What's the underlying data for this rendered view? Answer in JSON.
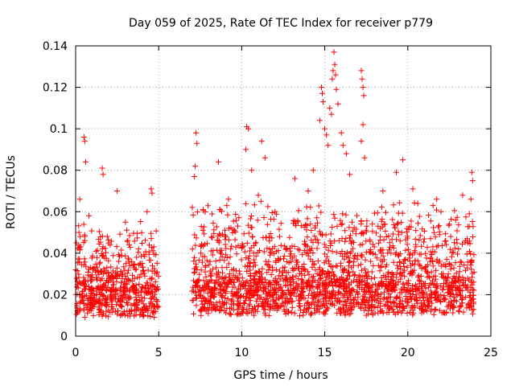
{
  "chart_data": {
    "type": "scatter",
    "title": "Day 059 of 2025, Rate Of TEC Index for receiver p779",
    "xlabel": "GPS time / hours",
    "ylabel": "ROTI / TECUs",
    "xlim": [
      0,
      25
    ],
    "ylim": [
      0,
      0.14
    ],
    "x_ticks": [
      0,
      5,
      10,
      15,
      20,
      25
    ],
    "y_ticks": [
      0,
      0.02,
      0.04,
      0.06,
      0.08,
      0.1,
      0.12,
      0.14
    ],
    "x_tick_labels": [
      "0",
      "5",
      "10",
      "15",
      "20",
      "25"
    ],
    "y_tick_labels": [
      "0",
      "0.02",
      "0.04",
      "0.06",
      "0.08",
      "0.1",
      "0.12",
      "0.14"
    ],
    "grid": true,
    "marker": "plus",
    "color": "#ff0000",
    "series": [
      {
        "segments": [
          {
            "x_start": 0.0,
            "x_end": 5.0,
            "typical": 0.015,
            "spread": 0.018
          },
          {
            "x_start": 7.0,
            "x_end": 24.0,
            "typical": 0.017,
            "spread": 0.022
          }
        ],
        "points": [
          [
            0.5,
            0.096
          ],
          [
            0.55,
            0.094
          ],
          [
            0.6,
            0.084
          ],
          [
            0.25,
            0.066
          ],
          [
            0.8,
            0.058
          ],
          [
            1.6,
            0.081
          ],
          [
            1.65,
            0.078
          ],
          [
            2.5,
            0.07
          ],
          [
            3.0,
            0.055
          ],
          [
            4.55,
            0.071
          ],
          [
            4.6,
            0.069
          ],
          [
            4.3,
            0.06
          ],
          [
            0.2,
            0.05
          ],
          [
            7.25,
            0.098
          ],
          [
            7.3,
            0.093
          ],
          [
            7.2,
            0.082
          ],
          [
            7.15,
            0.077
          ],
          [
            8.6,
            0.084
          ],
          [
            9.2,
            0.066
          ],
          [
            10.3,
            0.101
          ],
          [
            10.4,
            0.1
          ],
          [
            10.25,
            0.09
          ],
          [
            10.6,
            0.08
          ],
          [
            11.2,
            0.094
          ],
          [
            11.4,
            0.086
          ],
          [
            11.0,
            0.068
          ],
          [
            12.0,
            0.06
          ],
          [
            13.2,
            0.076
          ],
          [
            14.0,
            0.07
          ],
          [
            14.3,
            0.08
          ],
          [
            14.7,
            0.104
          ],
          [
            14.8,
            0.12
          ],
          [
            14.85,
            0.117
          ],
          [
            14.9,
            0.113
          ],
          [
            15.0,
            0.1
          ],
          [
            15.1,
            0.097
          ],
          [
            15.2,
            0.092
          ],
          [
            15.3,
            0.11
          ],
          [
            15.4,
            0.107
          ],
          [
            15.45,
            0.124
          ],
          [
            15.5,
            0.128
          ],
          [
            15.55,
            0.137
          ],
          [
            15.6,
            0.131
          ],
          [
            15.65,
            0.126
          ],
          [
            15.7,
            0.119
          ],
          [
            15.8,
            0.112
          ],
          [
            16.0,
            0.098
          ],
          [
            16.1,
            0.092
          ],
          [
            16.3,
            0.088
          ],
          [
            16.5,
            0.078
          ],
          [
            17.2,
            0.128
          ],
          [
            17.25,
            0.124
          ],
          [
            17.3,
            0.12
          ],
          [
            17.35,
            0.116
          ],
          [
            17.3,
            0.102
          ],
          [
            17.2,
            0.094
          ],
          [
            17.4,
            0.086
          ],
          [
            18.5,
            0.07
          ],
          [
            19.3,
            0.079
          ],
          [
            19.7,
            0.085
          ],
          [
            20.3,
            0.071
          ],
          [
            20.6,
            0.064
          ],
          [
            22.0,
            0.06
          ],
          [
            22.5,
            0.054
          ],
          [
            23.3,
            0.068
          ],
          [
            23.85,
            0.079
          ],
          [
            23.9,
            0.075
          ],
          [
            23.8,
            0.066
          ],
          [
            23.7,
            0.059
          ]
        ]
      }
    ]
  }
}
